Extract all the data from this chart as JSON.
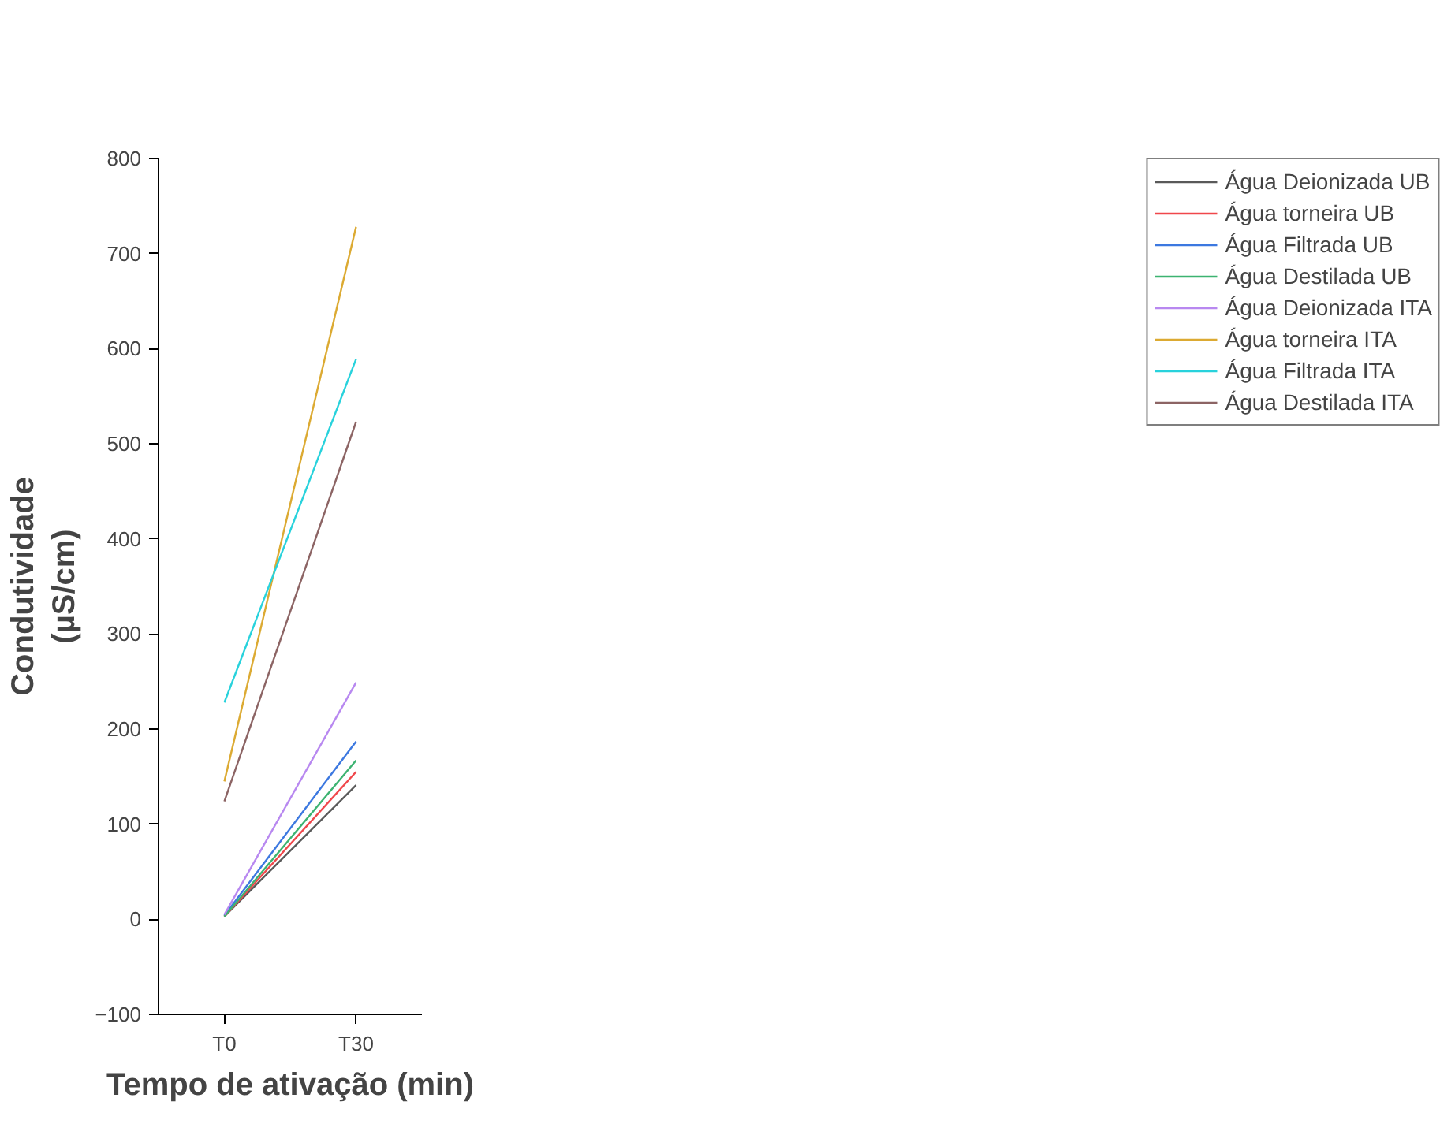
{
  "chart_data": {
    "type": "line",
    "xlabel": "Tempo de ativação (min)",
    "ylabel": "Condutividade\n(µS/cm)",
    "categories": [
      "T0",
      "T30"
    ],
    "series": [
      {
        "name": "Água Deionizada UB",
        "color": "#595959",
        "values": [
          3,
          141
        ]
      },
      {
        "name": "Água torneira UB",
        "color": "#f0474b",
        "values": [
          3,
          155
        ]
      },
      {
        "name": "Água Filtrada UB",
        "color": "#3c78e0",
        "values": [
          4,
          187
        ]
      },
      {
        "name": "Água Destilada UB",
        "color": "#3cb371",
        "values": [
          3,
          167
        ]
      },
      {
        "name": "Água Deionizada ITA",
        "color": "#b888f0",
        "values": [
          5,
          249
        ]
      },
      {
        "name": "Água torneira ITA",
        "color": "#dcaa32",
        "values": [
          145,
          728
        ]
      },
      {
        "name": "Água Filtrada ITA",
        "color": "#28d2dc",
        "values": [
          228,
          589
        ]
      },
      {
        "name": "Água Destilada ITA",
        "color": "#8c6464",
        "values": [
          124,
          523
        ]
      }
    ],
    "ylim": [
      -100,
      800
    ],
    "yticks": [
      -100,
      0,
      100,
      200,
      300,
      400,
      500,
      600,
      700,
      800
    ],
    "grid": false,
    "legend": "top right",
    "marker": "none",
    "line_style": "solid"
  }
}
